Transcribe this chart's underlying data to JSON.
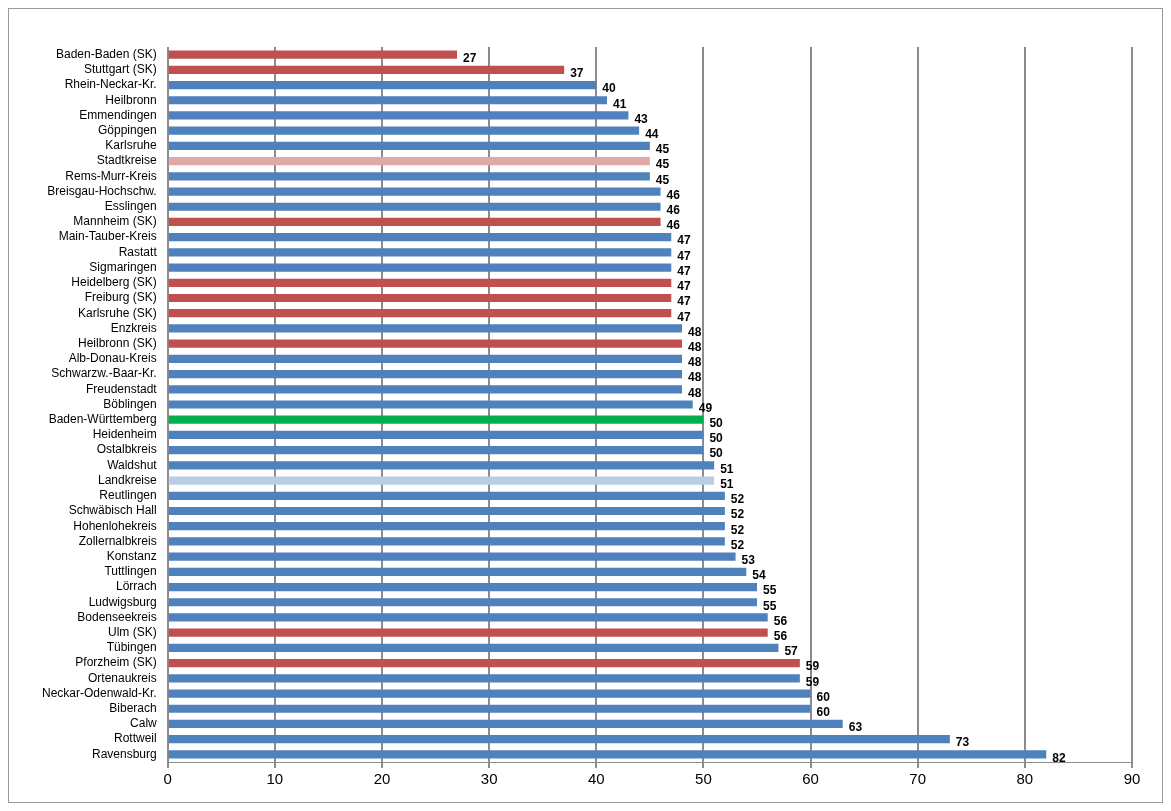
{
  "chart_data": {
    "type": "bar",
    "orientation": "horizontal",
    "categories": [
      "Baden-Baden (SK)",
      "Stuttgart (SK)",
      "Rhein-Neckar-Kr.",
      "Heilbronn",
      "Emmendingen",
      "Göppingen",
      "Karlsruhe",
      "Stadtkreise",
      "Rems-Murr-Kreis",
      "Breisgau-Hochschw.",
      "Esslingen",
      "Mannheim (SK)",
      "Main-Tauber-Kreis",
      "Rastatt",
      "Sigmaringen",
      "Heidelberg (SK)",
      "Freiburg (SK)",
      "Karlsruhe (SK)",
      "Enzkreis",
      "Heilbronn (SK)",
      "Alb-Donau-Kreis",
      "Schwarzw.-Baar-Kr.",
      "Freudenstadt",
      "Böblingen",
      "Baden-Württemberg",
      "Heidenheim",
      "Ostalbkreis",
      "Waldshut",
      "Landkreise",
      "Reutlingen",
      "Schwäbisch Hall",
      "Hohenlohekreis",
      "Zollernalbkreis",
      "Konstanz",
      "Tuttlingen",
      "Lörrach",
      "Ludwigsburg",
      "Bodenseekreis",
      "Ulm (SK)",
      "Tübingen",
      "Pforzheim (SK)",
      "Ortenaukreis",
      "Neckar-Odenwald-Kr.",
      "Biberach",
      "Calw",
      "Rottweil",
      "Ravensburg"
    ],
    "values": [
      27,
      37,
      40,
      41,
      43,
      44,
      45,
      45,
      45,
      46,
      46,
      46,
      47,
      47,
      47,
      47,
      47,
      47,
      48,
      48,
      48,
      48,
      48,
      49,
      50,
      50,
      50,
      51,
      51,
      52,
      52,
      52,
      52,
      53,
      54,
      55,
      55,
      56,
      56,
      57,
      59,
      59,
      60,
      60,
      63,
      73,
      82
    ],
    "data_labels": true,
    "colors": [
      "#c0504d",
      "#c0504d",
      "#4f81bd",
      "#4f81bd",
      "#4f81bd",
      "#4f81bd",
      "#4f81bd",
      "#e0a8a6",
      "#4f81bd",
      "#4f81bd",
      "#4f81bd",
      "#c0504d",
      "#4f81bd",
      "#4f81bd",
      "#4f81bd",
      "#c0504d",
      "#c0504d",
      "#c0504d",
      "#4f81bd",
      "#c0504d",
      "#4f81bd",
      "#4f81bd",
      "#4f81bd",
      "#4f81bd",
      "#00b050",
      "#4f81bd",
      "#4f81bd",
      "#4f81bd",
      "#b9cde5",
      "#4f81bd",
      "#4f81bd",
      "#4f81bd",
      "#4f81bd",
      "#4f81bd",
      "#4f81bd",
      "#4f81bd",
      "#4f81bd",
      "#4f81bd",
      "#c0504d",
      "#4f81bd",
      "#c0504d",
      "#4f81bd",
      "#4f81bd",
      "#4f81bd",
      "#4f81bd",
      "#4f81bd",
      "#4f81bd"
    ],
    "xlim": [
      0,
      90
    ],
    "xticks": [
      0,
      10,
      20,
      30,
      40,
      50,
      60,
      70,
      80,
      90
    ],
    "grid": "x"
  }
}
